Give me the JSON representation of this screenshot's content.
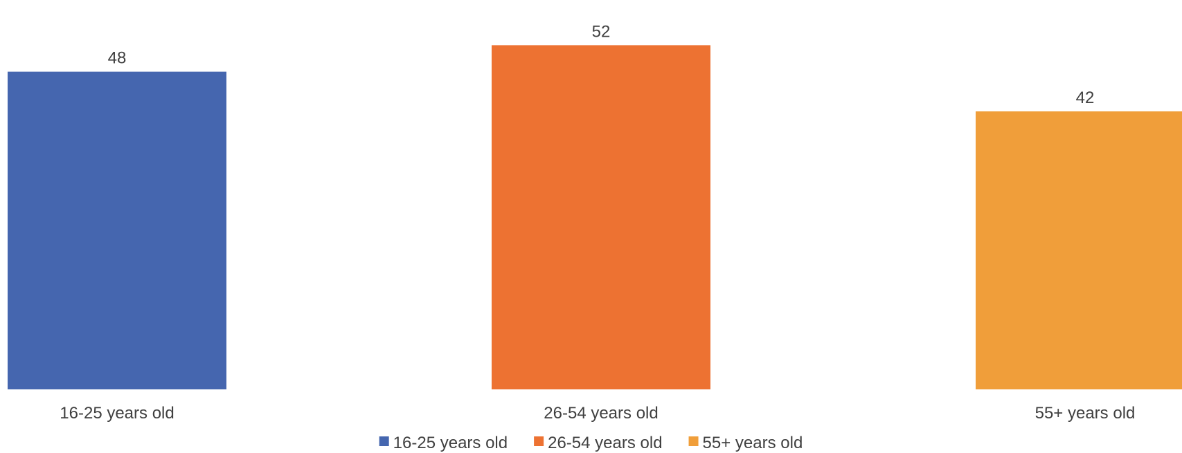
{
  "chart_data": {
    "type": "bar",
    "categories": [
      "16-25 years old",
      "26-54 years old",
      "55+ years old"
    ],
    "values": [
      48,
      52,
      42
    ],
    "colors": [
      "#4566AF",
      "#ED7232",
      "#F09E3A"
    ],
    "title": "",
    "xlabel": "",
    "ylabel": "",
    "grid": false,
    "show_y_axis": false,
    "data_labels": true,
    "legend": {
      "position": "bottom",
      "entries": [
        "16-25 years old",
        "26-54 years old",
        "55+ years old"
      ]
    }
  }
}
